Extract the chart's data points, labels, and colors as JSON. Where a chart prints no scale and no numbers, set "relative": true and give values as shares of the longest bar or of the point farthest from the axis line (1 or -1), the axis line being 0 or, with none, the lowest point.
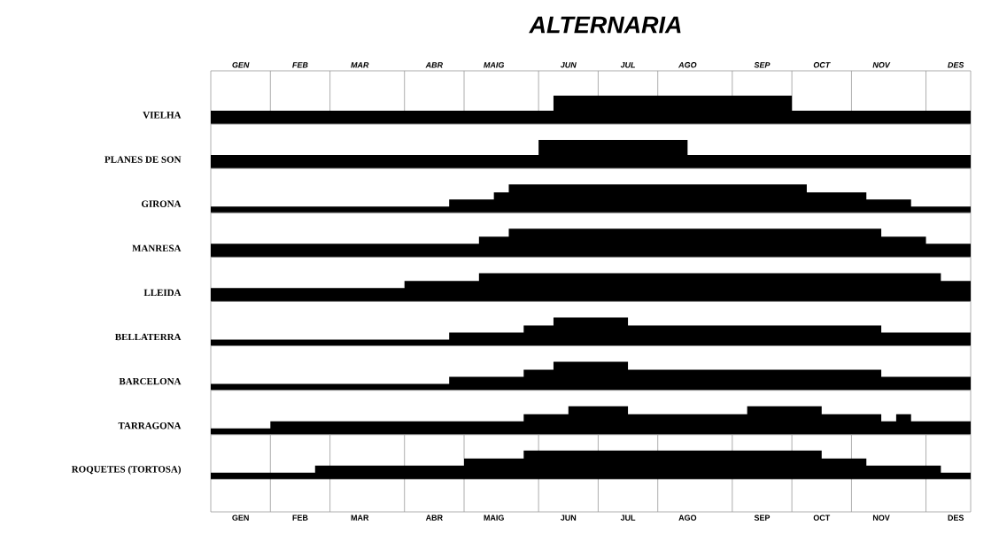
{
  "chart_data": [
    {
      "type": "area",
      "title": "ALTERNARIA",
      "relative": true,
      "grid": "x",
      "tick_labels": "x",
      "categories": [
        null,
        null,
        "GEN",
        null,
        null,
        null,
        "FEB",
        null,
        null,
        null,
        "MAR",
        null,
        null,
        null,
        null,
        "ABR",
        null,
        null,
        null,
        "MAIG",
        null,
        null,
        null,
        null,
        "JUN",
        null,
        null,
        null,
        "JUL",
        null,
        null,
        null,
        "AGO",
        null,
        null,
        null,
        null,
        "SEP",
        null,
        null,
        null,
        "OCT",
        null,
        null,
        null,
        "NOV",
        null,
        null,
        null,
        null,
        "DES",
        null
      ],
      "series": [
        {
          "name": "VIELHA",
          "color": "#000000",
          "values": [
            0.47,
            0.47,
            0.47,
            0.47,
            0.47,
            0.47,
            0.47,
            0.47,
            0.47,
            0.47,
            0.47,
            0.47,
            0.47,
            0.47,
            0.47,
            0.47,
            0.47,
            0.47,
            0.47,
            0.47,
            0.47,
            0.47,
            0.47,
            1,
            1,
            1,
            1,
            1,
            1,
            1,
            1,
            1,
            1,
            1,
            1,
            1,
            1,
            1,
            1,
            0.47,
            0.47,
            0.47,
            0.47,
            0.47,
            0.47,
            0.47,
            0.47,
            0.47,
            0.47,
            0.47,
            0.47,
            0.47
          ]
        }
      ]
    },
    {
      "type": "area",
      "relative": true,
      "grid": "x",
      "tick_labels": false,
      "categories": [
        null,
        null,
        null,
        null,
        null,
        null,
        null,
        null,
        null,
        null,
        null,
        null,
        null,
        null,
        null,
        null,
        null,
        null,
        null,
        null,
        null,
        null,
        null,
        null,
        null,
        null,
        null,
        null,
        null,
        null,
        null,
        null,
        null,
        null,
        null,
        null,
        null,
        null,
        null,
        null,
        null,
        null,
        null,
        null,
        null,
        null,
        null,
        null,
        null,
        null,
        null,
        null
      ],
      "series": [
        {
          "name": "PLANES DE SON",
          "color": "#000000",
          "values": [
            0.47,
            0.47,
            0.47,
            0.47,
            0.47,
            0.47,
            0.47,
            0.47,
            0.47,
            0.47,
            0.47,
            0.47,
            0.47,
            0.47,
            0.47,
            0.47,
            0.47,
            0.47,
            0.47,
            0.47,
            0.47,
            0.47,
            1,
            1,
            1,
            1,
            1,
            1,
            1,
            1,
            1,
            1,
            0.47,
            0.47,
            0.47,
            0.47,
            0.47,
            0.47,
            0.47,
            0.47,
            0.47,
            0.47,
            0.47,
            0.47,
            0.47,
            0.47,
            0.47,
            0.47,
            0.47,
            0.47,
            0.47,
            0.47
          ]
        }
      ]
    },
    {
      "type": "area",
      "relative": true,
      "grid": "x",
      "tick_labels": false,
      "categories": [
        null,
        null,
        null,
        null,
        null,
        null,
        null,
        null,
        null,
        null,
        null,
        null,
        null,
        null,
        null,
        null,
        null,
        null,
        null,
        null,
        null,
        null,
        null,
        null,
        null,
        null,
        null,
        null,
        null,
        null,
        null,
        null,
        null,
        null,
        null,
        null,
        null,
        null,
        null,
        null,
        null,
        null,
        null,
        null,
        null,
        null,
        null,
        null,
        null,
        null,
        null,
        null
      ],
      "series": [
        {
          "name": "GIRONA",
          "color": "#000000",
          "values": [
            0.22,
            0.22,
            0.22,
            0.22,
            0.22,
            0.22,
            0.22,
            0.22,
            0.22,
            0.22,
            0.22,
            0.22,
            0.22,
            0.22,
            0.22,
            0.22,
            0.47,
            0.47,
            0.47,
            0.72,
            1,
            1,
            1,
            1,
            1,
            1,
            1,
            1,
            1,
            1,
            1,
            1,
            1,
            1,
            1,
            1,
            1,
            1,
            1,
            1,
            0.72,
            0.72,
            0.72,
            0.72,
            0.47,
            0.47,
            0.47,
            0.22,
            0.22,
            0.22,
            0.22,
            0.22
          ]
        }
      ]
    },
    {
      "type": "area",
      "relative": true,
      "grid": "x",
      "tick_labels": false,
      "categories": [
        null,
        null,
        null,
        null,
        null,
        null,
        null,
        null,
        null,
        null,
        null,
        null,
        null,
        null,
        null,
        null,
        null,
        null,
        null,
        null,
        null,
        null,
        null,
        null,
        null,
        null,
        null,
        null,
        null,
        null,
        null,
        null,
        null,
        null,
        null,
        null,
        null,
        null,
        null,
        null,
        null,
        null,
        null,
        null,
        null,
        null,
        null,
        null,
        null,
        null,
        null,
        null
      ],
      "series": [
        {
          "name": "MANRESA",
          "color": "#000000",
          "values": [
            0.47,
            0.47,
            0.47,
            0.47,
            0.47,
            0.47,
            0.47,
            0.47,
            0.47,
            0.47,
            0.47,
            0.47,
            0.47,
            0.47,
            0.47,
            0.47,
            0.47,
            0.47,
            0.72,
            0.72,
            1,
            1,
            1,
            1,
            1,
            1,
            1,
            1,
            1,
            1,
            1,
            1,
            1,
            1,
            1,
            1,
            1,
            1,
            1,
            1,
            1,
            1,
            1,
            1,
            1,
            0.72,
            0.72,
            0.72,
            0.47,
            0.47,
            0.47,
            0.47
          ]
        }
      ]
    },
    {
      "type": "area",
      "relative": true,
      "grid": "x",
      "tick_labels": false,
      "categories": [
        null,
        null,
        null,
        null,
        null,
        null,
        null,
        null,
        null,
        null,
        null,
        null,
        null,
        null,
        null,
        null,
        null,
        null,
        null,
        null,
        null,
        null,
        null,
        null,
        null,
        null,
        null,
        null,
        null,
        null,
        null,
        null,
        null,
        null,
        null,
        null,
        null,
        null,
        null,
        null,
        null,
        null,
        null,
        null,
        null,
        null,
        null,
        null,
        null,
        null,
        null,
        null
      ],
      "series": [
        {
          "name": "LLEIDA",
          "color": "#000000",
          "values": [
            0.47,
            0.47,
            0.47,
            0.47,
            0.47,
            0.47,
            0.47,
            0.47,
            0.47,
            0.47,
            0.47,
            0.47,
            0.47,
            0.72,
            0.72,
            0.72,
            0.72,
            0.72,
            1,
            1,
            1,
            1,
            1,
            1,
            1,
            1,
            1,
            1,
            1,
            1,
            1,
            1,
            1,
            1,
            1,
            1,
            1,
            1,
            1,
            1,
            1,
            1,
            1,
            1,
            1,
            1,
            1,
            1,
            1,
            0.72,
            0.72,
            0.47
          ]
        }
      ]
    },
    {
      "type": "area",
      "relative": true,
      "grid": "x",
      "tick_labels": false,
      "categories": [
        null,
        null,
        null,
        null,
        null,
        null,
        null,
        null,
        null,
        null,
        null,
        null,
        null,
        null,
        null,
        null,
        null,
        null,
        null,
        null,
        null,
        null,
        null,
        null,
        null,
        null,
        null,
        null,
        null,
        null,
        null,
        null,
        null,
        null,
        null,
        null,
        null,
        null,
        null,
        null,
        null,
        null,
        null,
        null,
        null,
        null,
        null,
        null,
        null,
        null,
        null,
        null
      ],
      "series": [
        {
          "name": "BELLATERRA",
          "color": "#000000",
          "values": [
            0.22,
            0.22,
            0.22,
            0.22,
            0.22,
            0.22,
            0.22,
            0.22,
            0.22,
            0.22,
            0.22,
            0.22,
            0.22,
            0.22,
            0.22,
            0.22,
            0.47,
            0.47,
            0.47,
            0.47,
            0.47,
            0.72,
            0.72,
            1,
            1,
            1,
            1,
            1,
            0.72,
            0.72,
            0.72,
            0.72,
            0.72,
            0.72,
            0.72,
            0.72,
            0.72,
            0.72,
            0.72,
            0.72,
            0.72,
            0.72,
            0.72,
            0.72,
            0.72,
            0.47,
            0.47,
            0.47,
            0.47,
            0.47,
            0.47,
            0.47
          ]
        }
      ]
    },
    {
      "type": "area",
      "relative": true,
      "grid": "x",
      "tick_labels": false,
      "categories": [
        null,
        null,
        null,
        null,
        null,
        null,
        null,
        null,
        null,
        null,
        null,
        null,
        null,
        null,
        null,
        null,
        null,
        null,
        null,
        null,
        null,
        null,
        null,
        null,
        null,
        null,
        null,
        null,
        null,
        null,
        null,
        null,
        null,
        null,
        null,
        null,
        null,
        null,
        null,
        null,
        null,
        null,
        null,
        null,
        null,
        null,
        null,
        null,
        null,
        null,
        null,
        null
      ],
      "series": [
        {
          "name": "BARCELONA",
          "color": "#000000",
          "values": [
            0.22,
            0.22,
            0.22,
            0.22,
            0.22,
            0.22,
            0.22,
            0.22,
            0.22,
            0.22,
            0.22,
            0.22,
            0.22,
            0.22,
            0.22,
            0.22,
            0.47,
            0.47,
            0.47,
            0.47,
            0.47,
            0.72,
            0.72,
            1,
            1,
            1,
            1,
            1,
            0.72,
            0.72,
            0.72,
            0.72,
            0.72,
            0.72,
            0.72,
            0.72,
            0.72,
            0.72,
            0.72,
            0.72,
            0.72,
            0.72,
            0.72,
            0.72,
            0.72,
            0.47,
            0.47,
            0.47,
            0.47,
            0.47,
            0.47,
            0.47
          ]
        }
      ]
    },
    {
      "type": "area",
      "relative": true,
      "grid": "x",
      "tick_labels": false,
      "categories": [
        null,
        null,
        null,
        null,
        null,
        null,
        null,
        null,
        null,
        null,
        null,
        null,
        null,
        null,
        null,
        null,
        null,
        null,
        null,
        null,
        null,
        null,
        null,
        null,
        null,
        null,
        null,
        null,
        null,
        null,
        null,
        null,
        null,
        null,
        null,
        null,
        null,
        null,
        null,
        null,
        null,
        null,
        null,
        null,
        null,
        null,
        null,
        null,
        null,
        null,
        null,
        null
      ],
      "series": [
        {
          "name": "TARRAGONA",
          "color": "#000000",
          "values": [
            0.22,
            0.22,
            0.22,
            0.22,
            0.47,
            0.47,
            0.47,
            0.47,
            0.47,
            0.47,
            0.47,
            0.47,
            0.47,
            0.47,
            0.47,
            0.47,
            0.47,
            0.47,
            0.47,
            0.47,
            0.47,
            0.72,
            0.72,
            0.72,
            1,
            1,
            1,
            1,
            0.72,
            0.72,
            0.72,
            0.72,
            0.72,
            0.72,
            0.72,
            0.72,
            1,
            1,
            1,
            1,
            1,
            0.72,
            0.72,
            0.72,
            0.72,
            0.47,
            0.72,
            0.47,
            0.47,
            0.47,
            0.47,
            0.22
          ]
        }
      ]
    },
    {
      "type": "area",
      "relative": true,
      "grid": "x",
      "tick_labels": "x",
      "categories": [
        null,
        null,
        "GEN",
        null,
        null,
        null,
        "FEB",
        null,
        null,
        null,
        "MAR",
        null,
        null,
        null,
        null,
        "ABR",
        null,
        null,
        null,
        "MAIG",
        null,
        null,
        null,
        null,
        "JUN",
        null,
        null,
        null,
        "JUL",
        null,
        null,
        null,
        "AGO",
        null,
        null,
        null,
        null,
        "SEP",
        null,
        null,
        null,
        "OCT",
        null,
        null,
        null,
        "NOV",
        null,
        null,
        null,
        null,
        "DES",
        null
      ],
      "series": [
        {
          "name": "ROQUETES (TORTOSA)",
          "color": "#000000",
          "values": [
            0.22,
            0.22,
            0.22,
            0.22,
            0.22,
            0.22,
            0.22,
            0.47,
            0.47,
            0.47,
            0.47,
            0.47,
            0.47,
            0.47,
            0.47,
            0.47,
            0.47,
            0.72,
            0.72,
            0.72,
            0.72,
            1,
            1,
            1,
            1,
            1,
            1,
            1,
            1,
            1,
            1,
            1,
            1,
            1,
            1,
            1,
            1,
            1,
            1,
            1,
            1,
            0.72,
            0.72,
            0.72,
            0.47,
            0.47,
            0.47,
            0.47,
            0.47,
            0.22,
            0.22,
            0.22
          ]
        }
      ]
    }
  ]
}
